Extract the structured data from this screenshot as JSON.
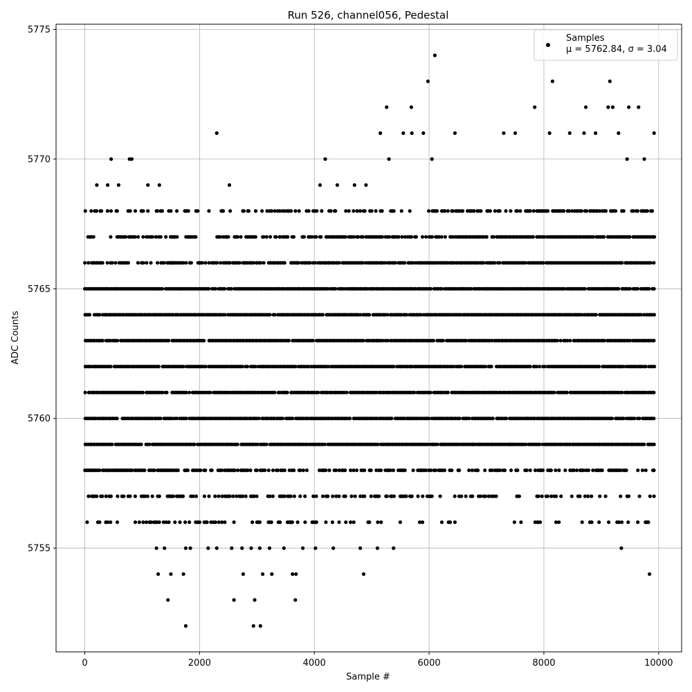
{
  "chart_data": {
    "type": "scatter",
    "title": "Run 526, channel056, Pedestal",
    "xlabel": "Sample #",
    "ylabel": "ADC Counts",
    "xlim": [
      -500,
      10400
    ],
    "ylim": [
      5751,
      5775.2
    ],
    "xticks": [
      0,
      2000,
      4000,
      6000,
      8000,
      10000
    ],
    "yticks": [
      5755,
      5760,
      5765,
      5770,
      5775
    ],
    "grid": true,
    "legend_position": "top-right",
    "marker_color": "#000000",
    "series": [
      {
        "name": "Samples",
        "stats_label": "μ = 5762.84, σ = 3.04",
        "n_samples": 10000,
        "x_range": [
          0,
          9930
        ],
        "dense_band": [
          5756,
          5768
        ],
        "points": [
          [
            2300,
            5771
          ],
          [
            6100,
            5774
          ],
          [
            5980,
            5773
          ],
          [
            9150,
            5773
          ],
          [
            8150,
            5773
          ],
          [
            5260,
            5772
          ],
          [
            5690,
            5772
          ],
          [
            7840,
            5772
          ],
          [
            8730,
            5772
          ],
          [
            9120,
            5772
          ],
          [
            9200,
            5772
          ],
          [
            9480,
            5772
          ],
          [
            9650,
            5772
          ],
          [
            5150,
            5771
          ],
          [
            5550,
            5771
          ],
          [
            5700,
            5771
          ],
          [
            5900,
            5771
          ],
          [
            6450,
            5771
          ],
          [
            7300,
            5771
          ],
          [
            7500,
            5771
          ],
          [
            8100,
            5771
          ],
          [
            8450,
            5771
          ],
          [
            8700,
            5771
          ],
          [
            8900,
            5771
          ],
          [
            9300,
            5771
          ],
          [
            9920,
            5771
          ],
          [
            460,
            5770
          ],
          [
            780,
            5770
          ],
          [
            820,
            5770
          ],
          [
            4190,
            5770
          ],
          [
            5300,
            5770
          ],
          [
            6050,
            5770
          ],
          [
            9450,
            5770
          ],
          [
            9750,
            5770
          ],
          [
            210,
            5769
          ],
          [
            400,
            5769
          ],
          [
            590,
            5769
          ],
          [
            1100,
            5769
          ],
          [
            1300,
            5769
          ],
          [
            2520,
            5769
          ],
          [
            4100,
            5769
          ],
          [
            4400,
            5769
          ],
          [
            4700,
            5769
          ],
          [
            4900,
            5769
          ],
          [
            270,
            5768
          ],
          [
            550,
            5768
          ],
          [
            880,
            5768
          ],
          [
            1000,
            5768
          ],
          [
            1250,
            5768
          ],
          [
            1500,
            5768
          ],
          [
            2380,
            5768
          ],
          [
            4550,
            5768
          ],
          [
            4750,
            5768
          ],
          [
            5000,
            5768
          ],
          [
            1800,
            5767
          ],
          [
            2450,
            5767
          ],
          [
            2850,
            5767
          ],
          [
            3100,
            5767
          ],
          [
            3400,
            5767
          ],
          [
            3800,
            5767
          ],
          [
            1520,
            5766
          ],
          [
            2000,
            5766
          ],
          [
            2700,
            5766
          ],
          [
            3000,
            5766
          ],
          [
            3300,
            5766
          ],
          [
            3700,
            5766
          ],
          [
            400,
            5756
          ],
          [
            950,
            5756
          ],
          [
            1420,
            5756
          ],
          [
            2200,
            5756
          ],
          [
            2600,
            5756
          ],
          [
            3050,
            5756
          ],
          [
            3600,
            5756
          ],
          [
            4020,
            5756
          ],
          [
            4550,
            5756
          ],
          [
            7890,
            5756
          ],
          [
            9770,
            5756
          ],
          [
            9820,
            5756
          ],
          [
            1250,
            5755
          ],
          [
            1390,
            5755
          ],
          [
            1760,
            5755
          ],
          [
            1840,
            5755
          ],
          [
            2150,
            5755
          ],
          [
            2300,
            5755
          ],
          [
            2560,
            5755
          ],
          [
            2740,
            5755
          ],
          [
            2900,
            5755
          ],
          [
            3050,
            5755
          ],
          [
            3220,
            5755
          ],
          [
            3470,
            5755
          ],
          [
            3800,
            5755
          ],
          [
            4020,
            5755
          ],
          [
            4330,
            5755
          ],
          [
            4800,
            5755
          ],
          [
            5100,
            5755
          ],
          [
            5380,
            5755
          ],
          [
            9350,
            5755
          ],
          [
            1280,
            5754
          ],
          [
            1500,
            5754
          ],
          [
            1720,
            5754
          ],
          [
            2760,
            5754
          ],
          [
            3100,
            5754
          ],
          [
            3260,
            5754
          ],
          [
            3620,
            5754
          ],
          [
            3680,
            5754
          ],
          [
            4860,
            5754
          ],
          [
            9840,
            5754
          ],
          [
            1450,
            5753
          ],
          [
            2600,
            5753
          ],
          [
            2960,
            5753
          ],
          [
            3670,
            5753
          ],
          [
            1760,
            5752
          ],
          [
            2940,
            5752
          ],
          [
            3060,
            5752
          ],
          [
            5350,
            5757
          ],
          [
            5500,
            5757
          ],
          [
            5700,
            5757
          ],
          [
            7130,
            5757
          ],
          [
            7530,
            5757
          ],
          [
            7880,
            5757
          ],
          [
            9450,
            5757
          ],
          [
            9850,
            5757
          ],
          [
            5580,
            5758
          ],
          [
            6270,
            5758
          ],
          [
            6850,
            5758
          ],
          [
            7100,
            5758
          ],
          [
            7700,
            5758
          ],
          [
            7850,
            5758
          ],
          [
            9420,
            5758
          ],
          [
            9900,
            5758
          ],
          [
            5300,
            5759
          ],
          [
            6250,
            5759
          ],
          [
            6750,
            5759
          ],
          [
            7400,
            5759
          ],
          [
            8200,
            5759
          ],
          [
            8400,
            5759
          ],
          [
            8950,
            5759
          ],
          [
            9720,
            5759
          ]
        ]
      }
    ]
  }
}
